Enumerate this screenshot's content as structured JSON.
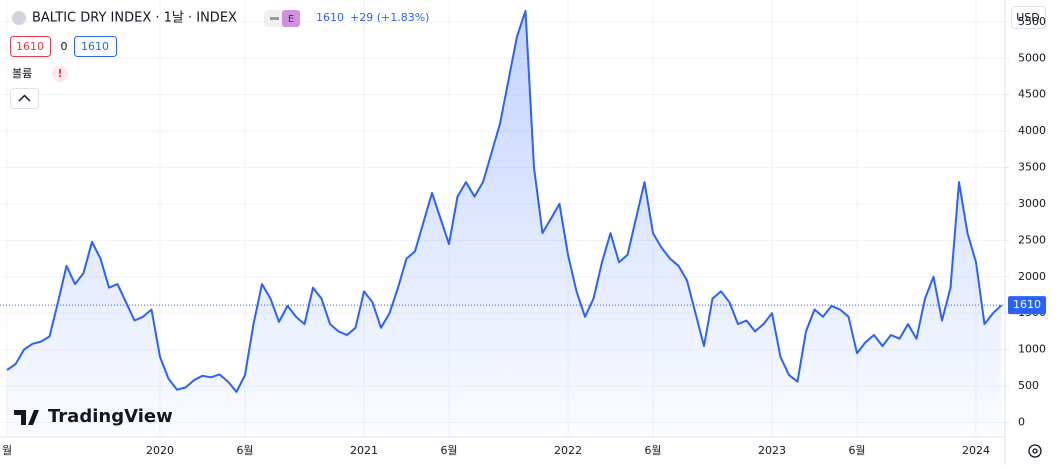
{
  "legend": {
    "symbol": "BALTIC DRY INDEX · 1날 · INDEX",
    "badge": "E",
    "last": "1610",
    "change": "+29 (+1.83%)",
    "inputs": [
      "1610",
      "0",
      "1610"
    ],
    "volume": "볼륨",
    "warning": "!"
  },
  "currency": "USD",
  "logo": "TradingView",
  "chart_data": {
    "type": "area",
    "color": "#2962ff",
    "grid": true,
    "price_line": 1610,
    "ylim": [
      -200,
      5800
    ],
    "yticks": [
      0,
      500,
      1000,
      1500,
      2000,
      2500,
      3000,
      3500,
      4000,
      4500,
      5000,
      5500
    ],
    "categories": [
      "월",
      null,
      null,
      null,
      null,
      null,
      null,
      null,
      null,
      null,
      null,
      null,
      null,
      null,
      null,
      null,
      null,
      null,
      "2020",
      null,
      null,
      null,
      null,
      null,
      null,
      null,
      null,
      null,
      "6월",
      null,
      null,
      null,
      null,
      null,
      null,
      null,
      null,
      null,
      null,
      null,
      null,
      null,
      "2021",
      null,
      null,
      null,
      null,
      null,
      null,
      null,
      null,
      null,
      "6월",
      null,
      null,
      null,
      null,
      null,
      null,
      null,
      null,
      null,
      null,
      null,
      null,
      null,
      "2022",
      null,
      null,
      null,
      null,
      null,
      null,
      null,
      null,
      null,
      "6월",
      null,
      null,
      null,
      null,
      null,
      null,
      null,
      null,
      null,
      null,
      null,
      null,
      null,
      "2023",
      null,
      null,
      null,
      null,
      null,
      null,
      null,
      null,
      null,
      "6월",
      null,
      null,
      null,
      null,
      null,
      null,
      null,
      null,
      null,
      null,
      null,
      null,
      null,
      "2024",
      null,
      null,
      null
    ],
    "values": [
      720,
      800,
      1000,
      1080,
      1110,
      1180,
      1650,
      2150,
      1900,
      2050,
      2480,
      2250,
      1850,
      1900,
      1650,
      1400,
      1450,
      1550,
      900,
      600,
      450,
      480,
      580,
      640,
      620,
      660,
      560,
      420,
      650,
      1350,
      1900,
      1700,
      1380,
      1600,
      1450,
      1350,
      1850,
      1700,
      1350,
      1250,
      1200,
      1300,
      1800,
      1650,
      1300,
      1500,
      1850,
      2250,
      2350,
      2750,
      3150,
      2800,
      2450,
      3100,
      3300,
      3100,
      3300,
      3700,
      4100,
      4700,
      5300,
      5650,
      3500,
      2600,
      2800,
      3000,
      2300,
      1800,
      1450,
      1700,
      2200,
      2600,
      2200,
      2300,
      2800,
      3300,
      2600,
      2400,
      2250,
      2150,
      1950,
      1500,
      1050,
      1700,
      1800,
      1650,
      1350,
      1400,
      1250,
      1350,
      1500,
      900,
      650,
      560,
      1250,
      1550,
      1450,
      1600,
      1550,
      1450,
      950,
      1100,
      1200,
      1050,
      1200,
      1150,
      1350,
      1150,
      1700,
      2000,
      1400,
      1850,
      3300,
      2600,
      2200,
      1350,
      1500,
      1610
    ]
  }
}
